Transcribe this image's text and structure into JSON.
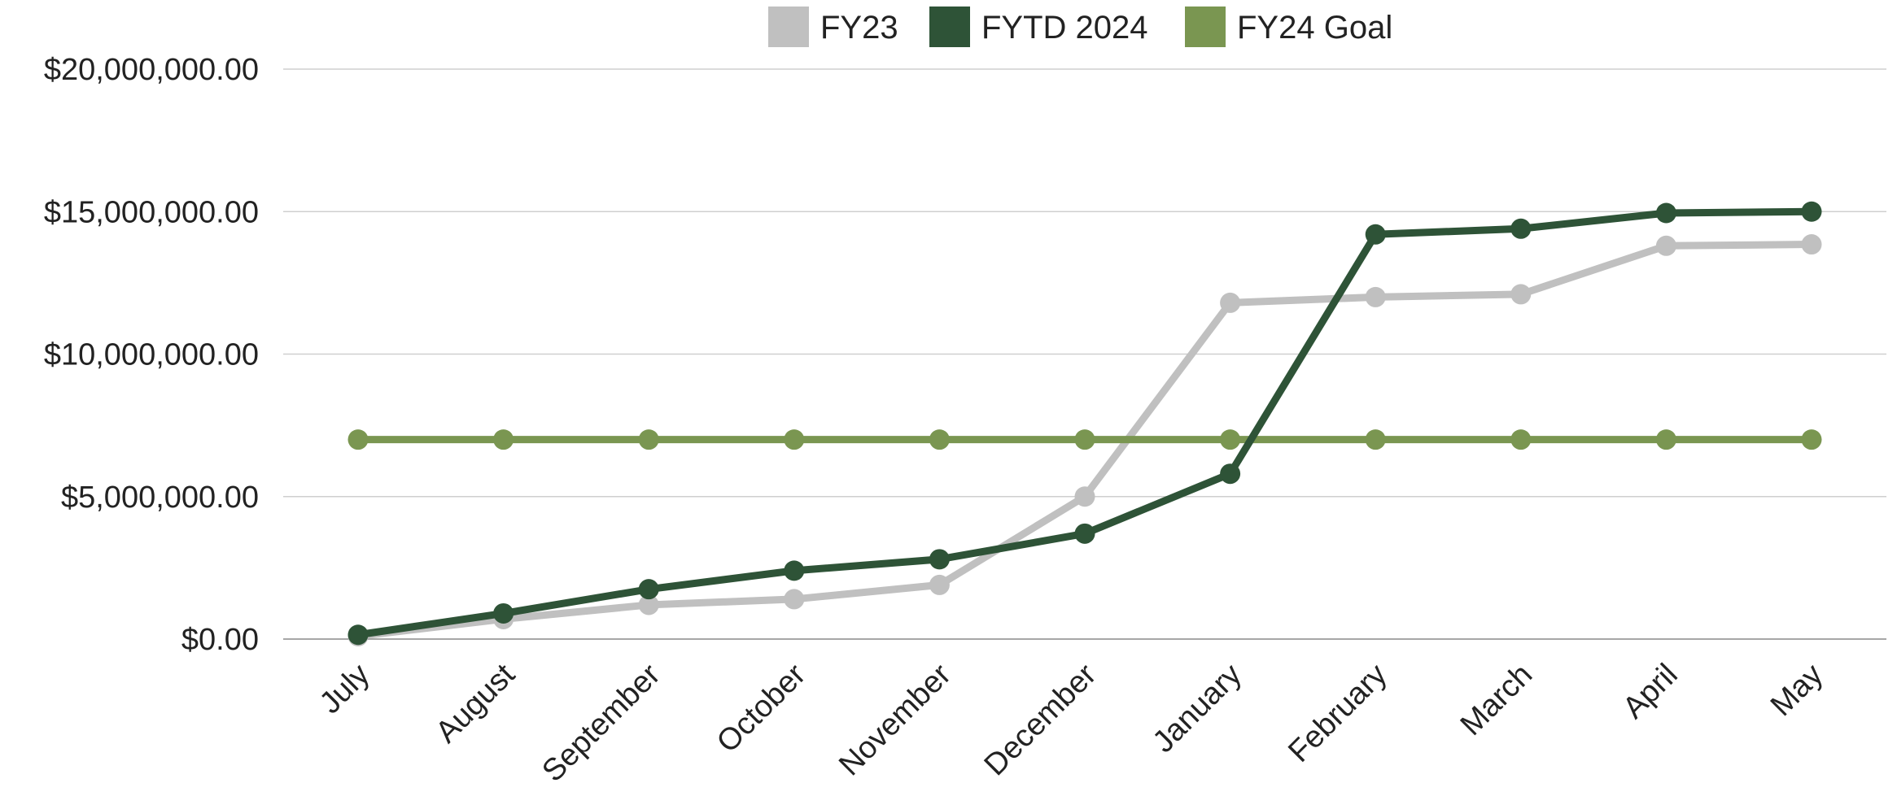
{
  "chart_data": {
    "type": "line",
    "categories": [
      "July",
      "August",
      "September",
      "October",
      "November",
      "December",
      "January",
      "February",
      "March",
      "April",
      "May"
    ],
    "series": [
      {
        "name": "FY23",
        "color": "#c0c0c0",
        "values": [
          100000,
          700000,
          1200000,
          1400000,
          1900000,
          5000000,
          11800000,
          12000000,
          12100000,
          13800000,
          13850000
        ]
      },
      {
        "name": "FYTD 2024",
        "color": "#2e5337",
        "values": [
          150000,
          900000,
          1750000,
          2400000,
          2800000,
          3700000,
          5800000,
          14200000,
          14400000,
          14950000,
          15000000
        ]
      },
      {
        "name": "FY24 Goal",
        "color": "#7a9651",
        "values": [
          7000000,
          7000000,
          7000000,
          7000000,
          7000000,
          7000000,
          7000000,
          7000000,
          7000000,
          7000000,
          7000000
        ]
      }
    ],
    "y_ticks": [
      "$0.00",
      "$5,000,000.00",
      "$10,000,000.00",
      "$15,000,000.00",
      "$20,000,000.00"
    ],
    "ylim": [
      0,
      20000000
    ],
    "ylabel": "",
    "xlabel": "",
    "grid": true,
    "legend_position": "top"
  }
}
